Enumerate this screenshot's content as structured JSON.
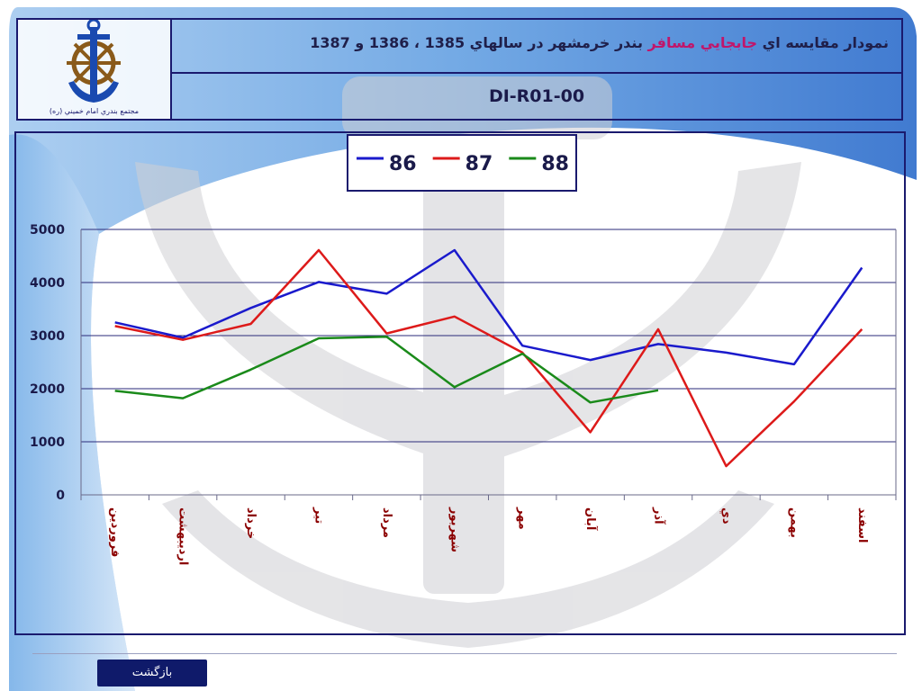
{
  "header": {
    "logo_caption": "مجتمع بندري امام خميني (ره)",
    "title_part1": "نمودار مقايسه اي",
    "title_highlight": "جابجايي مسافر",
    "title_part2": "بندر خرمشهر در سالهاي 1385 ، 1386 و 1387",
    "document_code": "DI-R01-00"
  },
  "footer": {
    "back_label": "بازگشت"
  },
  "colors": {
    "frame": "#1a1a6e",
    "series_86": "#1a1acc",
    "series_87": "#dd1a1a",
    "series_88": "#1a8a1a",
    "category_label": "#8b0000",
    "button": "#0f1a6a"
  },
  "chart_data": {
    "type": "line",
    "title": "",
    "xlabel": "",
    "ylabel": "",
    "ylim": [
      0,
      5000
    ],
    "yticks": [
      0,
      1000,
      2000,
      3000,
      4000,
      5000
    ],
    "legend_position": "top-center",
    "grid": true,
    "categories": [
      "فروردين",
      "ارديبهشت",
      "خرداد",
      "تير",
      "مرداد",
      "شهريور",
      "مهر",
      "آبان",
      "آذر",
      "دي",
      "بهمن",
      "اسفند"
    ],
    "series": [
      {
        "name": "86",
        "color": "#1a1acc",
        "values": [
          3250,
          2960,
          3520,
          4010,
          3790,
          4610,
          2810,
          2540,
          2840,
          2680,
          2460,
          4280
        ]
      },
      {
        "name": "87",
        "color": "#dd1a1a",
        "values": [
          3180,
          2920,
          3220,
          4610,
          3040,
          3360,
          2680,
          1180,
          3120,
          540,
          1760,
          3120
        ]
      },
      {
        "name": "88",
        "color": "#1a8a1a",
        "values": [
          1960,
          1820,
          2360,
          2950,
          2980,
          2030,
          2660,
          1740,
          1970,
          null,
          null,
          null
        ]
      }
    ]
  }
}
